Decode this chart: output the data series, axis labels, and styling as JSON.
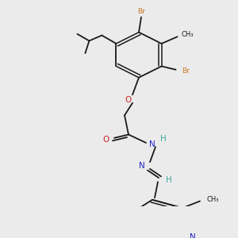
{
  "background_color": "#ebebeb",
  "C": "#1a1a1a",
  "H": "#3aaa9a",
  "N": "#2222cc",
  "O": "#cc2222",
  "Br": "#cc7722",
  "lw": 1.3,
  "dlw": 1.1,
  "fs": 7.5,
  "fs_small": 6.5
}
